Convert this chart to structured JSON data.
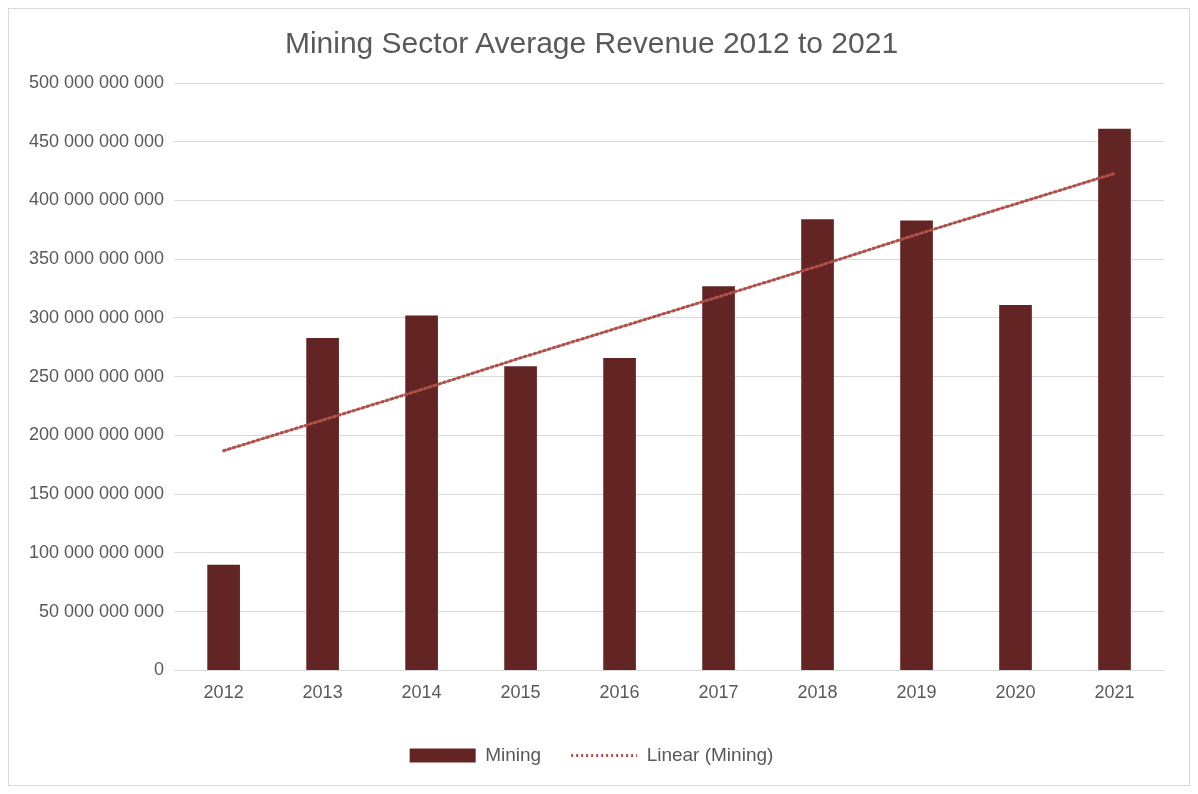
{
  "chart_data": {
    "type": "bar",
    "title": "Mining Sector Average Revenue 2012 to 2021",
    "categories": [
      "2012",
      "2013",
      "2014",
      "2015",
      "2016",
      "2017",
      "2018",
      "2019",
      "2020",
      "2021"
    ],
    "series": [
      {
        "name": "Mining",
        "color": "#632523",
        "values": [
          90000000000,
          283000000000,
          302000000000,
          259000000000,
          266000000000,
          327000000000,
          384000000000,
          383000000000,
          311000000000,
          461000000000
        ]
      },
      {
        "name": "Linear (Mining)",
        "type": "line",
        "color": "#b0504b",
        "line_style": "dotted",
        "marker": "none",
        "values": [
          187000000000,
          213000000000,
          239000000000,
          266000000000,
          292000000000,
          318000000000,
          344000000000,
          371000000000,
          397000000000,
          423000000000
        ]
      }
    ],
    "ylim": [
      0,
      500000000000
    ],
    "yticks": [
      {
        "value": 0,
        "label": "0"
      },
      {
        "value": 50000000000,
        "label": "50 000 000 000"
      },
      {
        "value": 100000000000,
        "label": "100 000 000 000"
      },
      {
        "value": 150000000000,
        "label": "150 000 000 000"
      },
      {
        "value": 200000000000,
        "label": "200 000 000 000"
      },
      {
        "value": 250000000000,
        "label": "250 000 000 000"
      },
      {
        "value": 300000000000,
        "label": "300 000 000 000"
      },
      {
        "value": 350000000000,
        "label": "350 000 000 000"
      },
      {
        "value": 400000000000,
        "label": "400 000 000 000"
      },
      {
        "value": 450000000000,
        "label": "450 000 000 000"
      },
      {
        "value": 500000000000,
        "label": "500 000 000 000"
      }
    ],
    "grid": "y",
    "legend": "bottom"
  }
}
